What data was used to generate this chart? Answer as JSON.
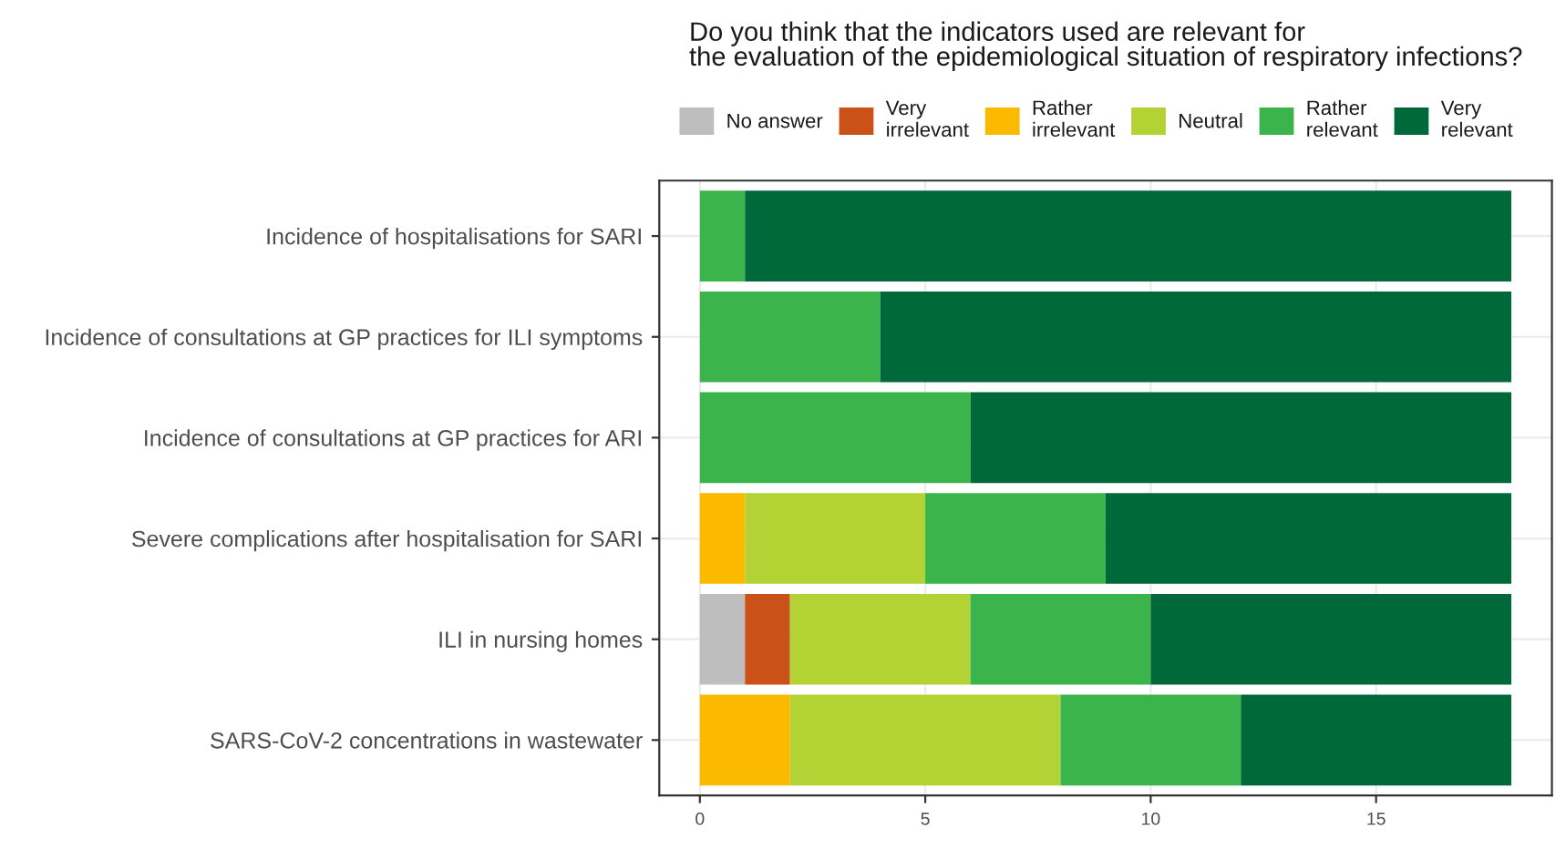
{
  "chart_data": {
    "type": "bar",
    "orientation": "horizontal",
    "stacked": true,
    "title": "Do you think that the indicators used are relevant for\nthe evaluation of the epidemiological situation of respiratory infections?",
    "categories": [
      "Incidence of hospitalisations for SARI",
      "Incidence of consultations at GP practices for ILI symptoms",
      "Incidence of consultations at GP practices for ARI",
      "Severe complications after hospitalisation for SARI",
      "ILI in nursing homes",
      "SARS-CoV-2 concentrations in wastewater"
    ],
    "series": [
      {
        "name": "No answer",
        "color": "#bebebe",
        "values": [
          0,
          0,
          0,
          0,
          1,
          0
        ]
      },
      {
        "name": "Very\nirrelevant",
        "color": "#ca5118",
        "values": [
          0,
          0,
          0,
          0,
          1,
          0
        ]
      },
      {
        "name": "Rather\nirrelevant",
        "color": "#fbb900",
        "values": [
          0,
          0,
          0,
          1,
          0,
          2
        ]
      },
      {
        "name": "Neutral",
        "color": "#b3d334",
        "values": [
          0,
          0,
          0,
          4,
          4,
          6
        ]
      },
      {
        "name": "Rather\nrelevant",
        "color": "#3bb44b",
        "values": [
          1,
          4,
          6,
          4,
          4,
          4
        ]
      },
      {
        "name": "Very\nrelevant",
        "color": "#00693a",
        "values": [
          17,
          14,
          12,
          9,
          8,
          6
        ]
      }
    ],
    "xlim": [
      -0.9,
      18.9
    ],
    "xticks": [
      0,
      5,
      10,
      15
    ],
    "grid": true,
    "legend": "top"
  }
}
